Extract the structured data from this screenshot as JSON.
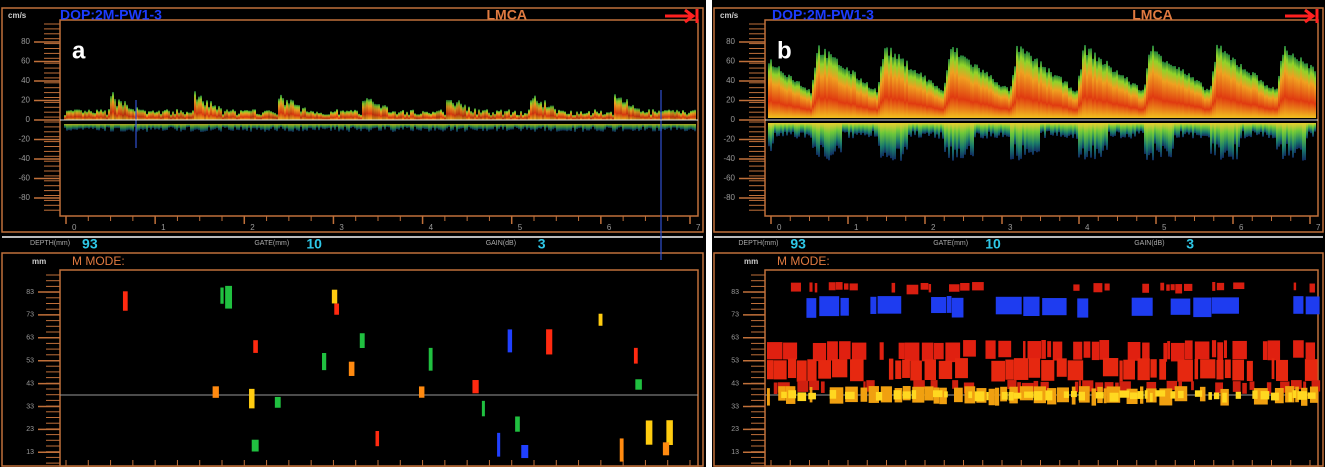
{
  "panels": [
    {
      "label": "a",
      "doppler": {
        "unit": "cm/s",
        "mode": "DOP:2M-PW1-3",
        "vessel": "LMCA",
        "yticks": [
          80,
          60,
          40,
          20,
          0,
          -20,
          -40,
          -60,
          -80
        ],
        "xticks": [
          0,
          1,
          2,
          3,
          4,
          5,
          6,
          7
        ]
      },
      "params": [
        {
          "label": "DEPTH(mm)",
          "value": 93
        },
        {
          "label": "GATE(mm)",
          "value": 10
        },
        {
          "label": "GAIN(dB)",
          "value": 3
        }
      ],
      "mmode": {
        "unit": "mm",
        "title": "M MODE:",
        "yticks": [
          83,
          73,
          63,
          53,
          43,
          33,
          23,
          13
        ]
      }
    },
    {
      "label": "b",
      "doppler": {
        "unit": "cm/s",
        "mode": "DOP:2M-PW1-3",
        "vessel": "LMCA",
        "yticks": [
          80,
          60,
          40,
          20,
          0,
          -20,
          -40,
          -60,
          -80
        ],
        "xticks": [
          0,
          1,
          2,
          3,
          4,
          5,
          6,
          7
        ]
      },
      "params": [
        {
          "label": "DEPTH(mm)",
          "value": 93
        },
        {
          "label": "GATE(mm)",
          "value": 10
        },
        {
          "label": "GAIN(dB)",
          "value": 3
        }
      ],
      "mmode": {
        "unit": "mm",
        "title": "M MODE:",
        "yticks": [
          83,
          73,
          63,
          53,
          43,
          33,
          23,
          13
        ]
      }
    }
  ]
}
